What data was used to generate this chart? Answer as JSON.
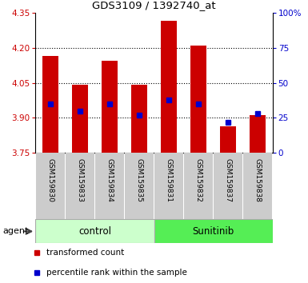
{
  "title": "GDS3109 / 1392740_at",
  "samples": [
    "GSM159830",
    "GSM159833",
    "GSM159834",
    "GSM159835",
    "GSM159831",
    "GSM159832",
    "GSM159837",
    "GSM159838"
  ],
  "red_values": [
    4.165,
    4.04,
    4.145,
    4.04,
    4.315,
    4.21,
    3.865,
    3.91
  ],
  "blue_pct": [
    35,
    30,
    35,
    27,
    38,
    35,
    22,
    28
  ],
  "y_min": 3.75,
  "y_max": 4.35,
  "y_ticks_left": [
    3.75,
    3.9,
    4.05,
    4.2,
    4.35
  ],
  "y_ticks_right": [
    0,
    25,
    50,
    75,
    100
  ],
  "grid_lines": [
    3.9,
    4.05,
    4.2
  ],
  "control_label": "control",
  "sunitinib_label": "Sunitinib",
  "control_color": "#ccffcc",
  "sunitinib_color": "#55ee55",
  "bar_color": "#cc0000",
  "blue_color": "#0000cc",
  "blue_marker_size": 5,
  "cell_bg": "#cccccc",
  "cell_border": "#ffffff",
  "agent_label": "agent",
  "legend_red": "transformed count",
  "legend_blue": "percentile rank within the sample"
}
